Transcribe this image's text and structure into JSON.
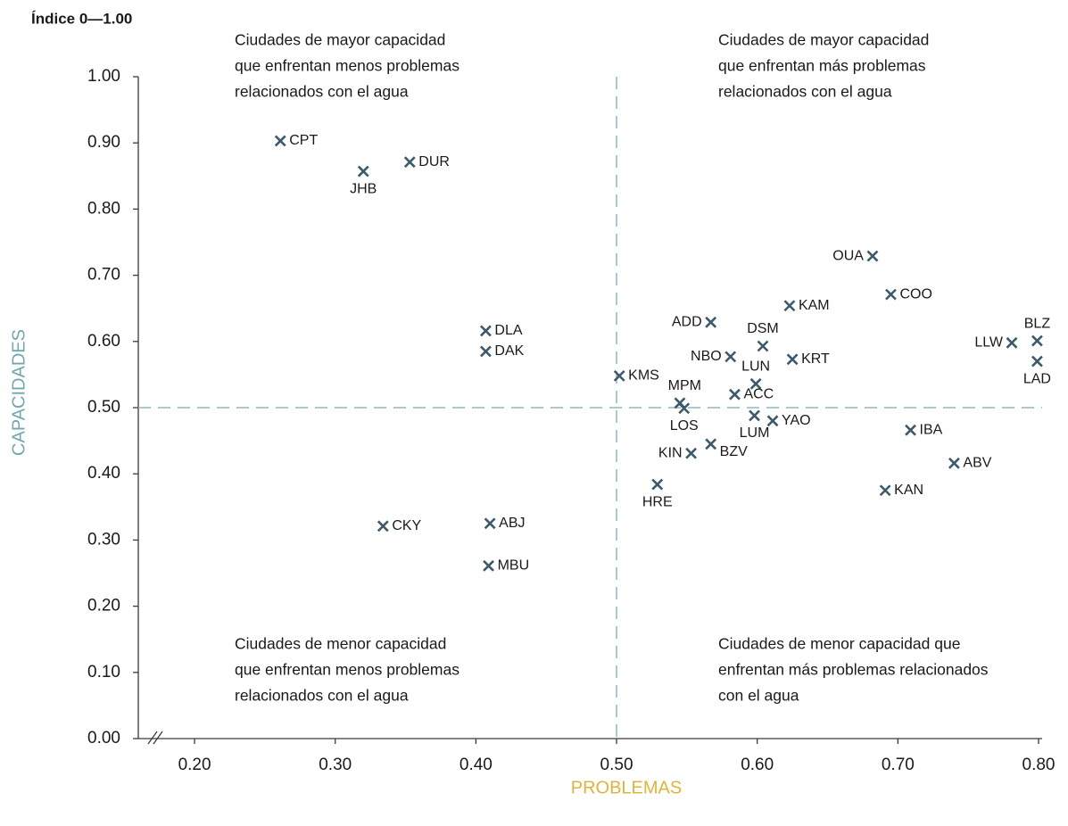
{
  "chart_data": {
    "type": "scatter",
    "y_unit": "Índice 0—1.00",
    "xlabel": "PROBLEMAS",
    "ylabel": "CAPACIDADES",
    "labels": [
      "CPT",
      "JHB",
      "DUR",
      "DLA",
      "DAK",
      "CKY",
      "ABJ",
      "MBU",
      "KMS",
      "MPM",
      "LOS",
      "KIN",
      "BZV",
      "HRE",
      "ADD",
      "DSM",
      "NBO",
      "LUN",
      "ACC",
      "LUM",
      "YAO",
      "KAM",
      "KRT",
      "OUA",
      "COO",
      "IBA",
      "KAN",
      "ABV",
      "LLW",
      "BLZ",
      "LAD"
    ],
    "x": [
      0.261,
      0.32,
      0.353,
      0.407,
      0.407,
      0.334,
      0.41,
      0.409,
      0.502,
      0.545,
      0.548,
      0.553,
      0.567,
      0.529,
      0.567,
      0.604,
      0.581,
      0.599,
      0.584,
      0.598,
      0.611,
      0.623,
      0.625,
      0.682,
      0.695,
      0.709,
      0.691,
      0.74,
      0.781,
      0.799,
      0.799
    ],
    "values": [
      0.903,
      0.857,
      0.871,
      0.616,
      0.585,
      0.321,
      0.325,
      0.261,
      0.548,
      0.507,
      0.499,
      0.431,
      0.445,
      0.384,
      0.629,
      0.593,
      0.577,
      0.536,
      0.52,
      0.488,
      0.48,
      0.654,
      0.573,
      0.729,
      0.671,
      0.466,
      0.375,
      0.416,
      0.598,
      0.601,
      0.57
    ],
    "color": "#3d5a6c",
    "xlim": [
      0.16,
      0.8
    ],
    "ylim": [
      0,
      1.0
    ],
    "xticks": [
      {
        "value": 0.2,
        "label": "0.20"
      },
      {
        "value": 0.3,
        "label": "0.30"
      },
      {
        "value": 0.4,
        "label": "0.40"
      },
      {
        "value": 0.5,
        "label": "0.50"
      },
      {
        "value": 0.6,
        "label": "0.60"
      },
      {
        "value": 0.7,
        "label": "0.70"
      },
      {
        "value": 0.8,
        "label": "0.80"
      }
    ],
    "yticks": [
      {
        "value": 0,
        "label": "0.00"
      },
      {
        "value": 0.1,
        "label": "0.10"
      },
      {
        "value": 0.2,
        "label": "0.20"
      },
      {
        "value": 0.3,
        "label": "0.30"
      },
      {
        "value": 0.4,
        "label": "0.40"
      },
      {
        "value": 0.5,
        "label": "0.50"
      },
      {
        "value": 0.6,
        "label": "0.60"
      },
      {
        "value": 0.7,
        "label": "0.70"
      },
      {
        "value": 0.8,
        "label": "0.80"
      },
      {
        "value": 0.9,
        "label": "0.90"
      },
      {
        "value": 1.0,
        "label": "1.00"
      }
    ],
    "ref_x": 0.5,
    "ref_y": 0.5,
    "annotations": [
      [
        "Ciudades de mayor capacidad",
        "que enfrentan menos problemas",
        "relacionados con el agua"
      ],
      [
        "Ciudades de mayor capacidad",
        "que enfrentan más problemas",
        "relacionados con el agua"
      ],
      [
        "Ciudades de menor capacidad",
        "que enfrentan menos problemas",
        "relacionados con el agua"
      ],
      [
        "Ciudades de menor capacidad que",
        "enfrentan más problemas relacionados",
        "con el agua"
      ]
    ]
  }
}
